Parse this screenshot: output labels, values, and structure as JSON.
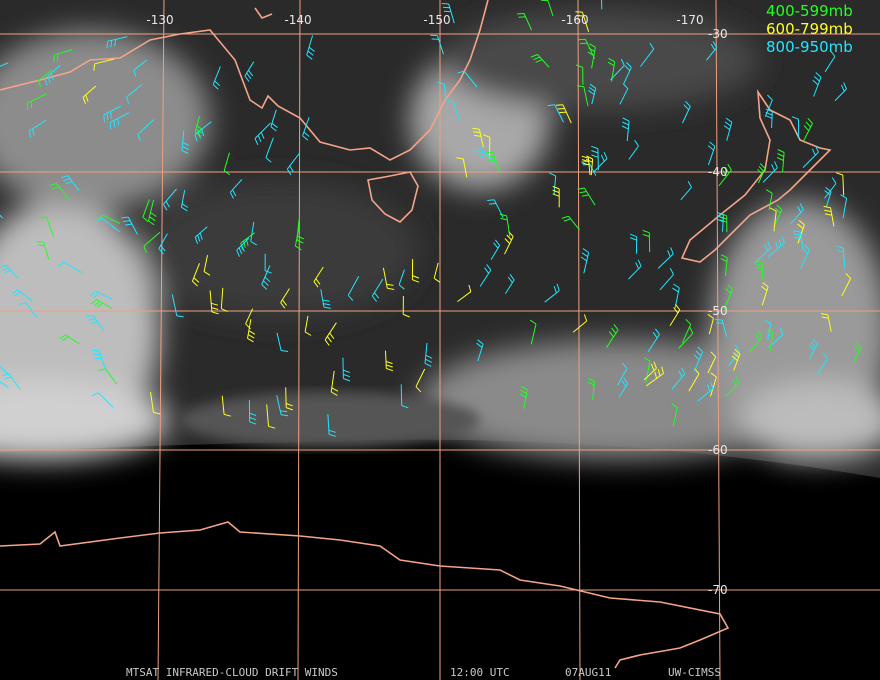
{
  "map": {
    "longitude_labels": [
      "-130",
      "-140",
      "-150",
      "-160",
      "-170"
    ],
    "latitude_labels": [
      "-30",
      "-40",
      "-50",
      "-60",
      "-70"
    ],
    "legend": [
      {
        "label": "400-599mb",
        "color": "#22ff22"
      },
      {
        "label": "600-799mb",
        "color": "#ffff22"
      },
      {
        "label": "800-950mb",
        "color": "#22e5ff"
      }
    ],
    "footer": {
      "product": "MTSAT INFRARED-CLOUD DRIFT WINDS",
      "time": "12:00 UTC",
      "date": "07AUG11",
      "source": "UW-CIMSS"
    }
  }
}
